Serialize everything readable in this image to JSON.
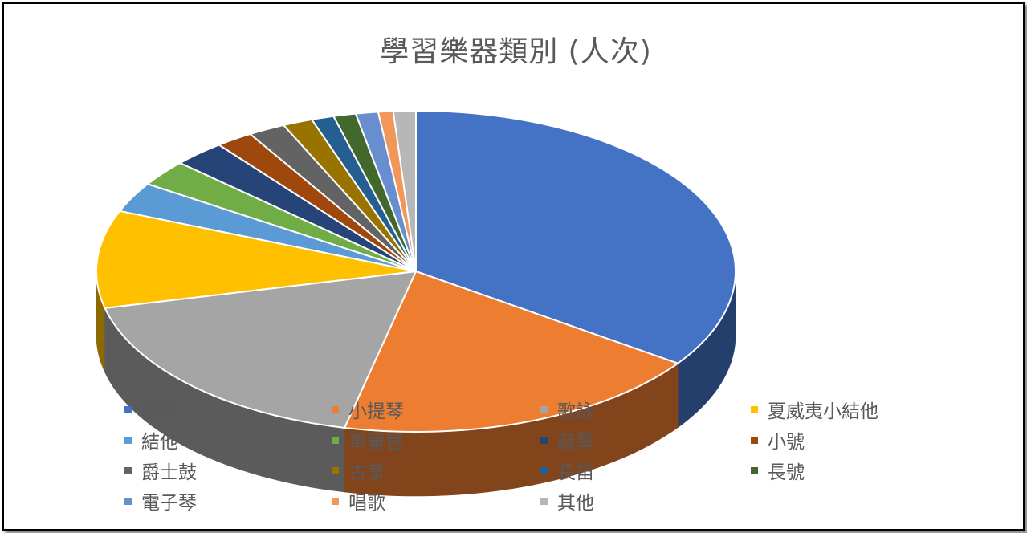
{
  "chart_data": {
    "type": "pie",
    "title": "學習樂器類別 (人次)",
    "legend_position": "bottom",
    "style": "3d",
    "categories": [
      "鋼琴",
      "小提琴",
      "歌詠",
      "夏威夷小結他",
      "結他",
      "單簧管",
      "敲擊",
      "小號",
      "爵士鼓",
      "古箏",
      "長笛",
      "長號",
      "電子琴",
      "唱歌",
      "其他"
    ],
    "values": [
      92,
      50,
      47,
      26,
      8,
      7,
      7,
      5,
      5,
      4,
      3,
      3,
      3,
      2,
      3
    ],
    "colors": [
      "#4472C4",
      "#ED7D31",
      "#A5A5A5",
      "#FFC000",
      "#5B9BD5",
      "#70AD47",
      "#264478",
      "#9E480E",
      "#636363",
      "#997300",
      "#255E91",
      "#43682B",
      "#698ED0",
      "#F1975A",
      "#B7B7B7"
    ]
  }
}
